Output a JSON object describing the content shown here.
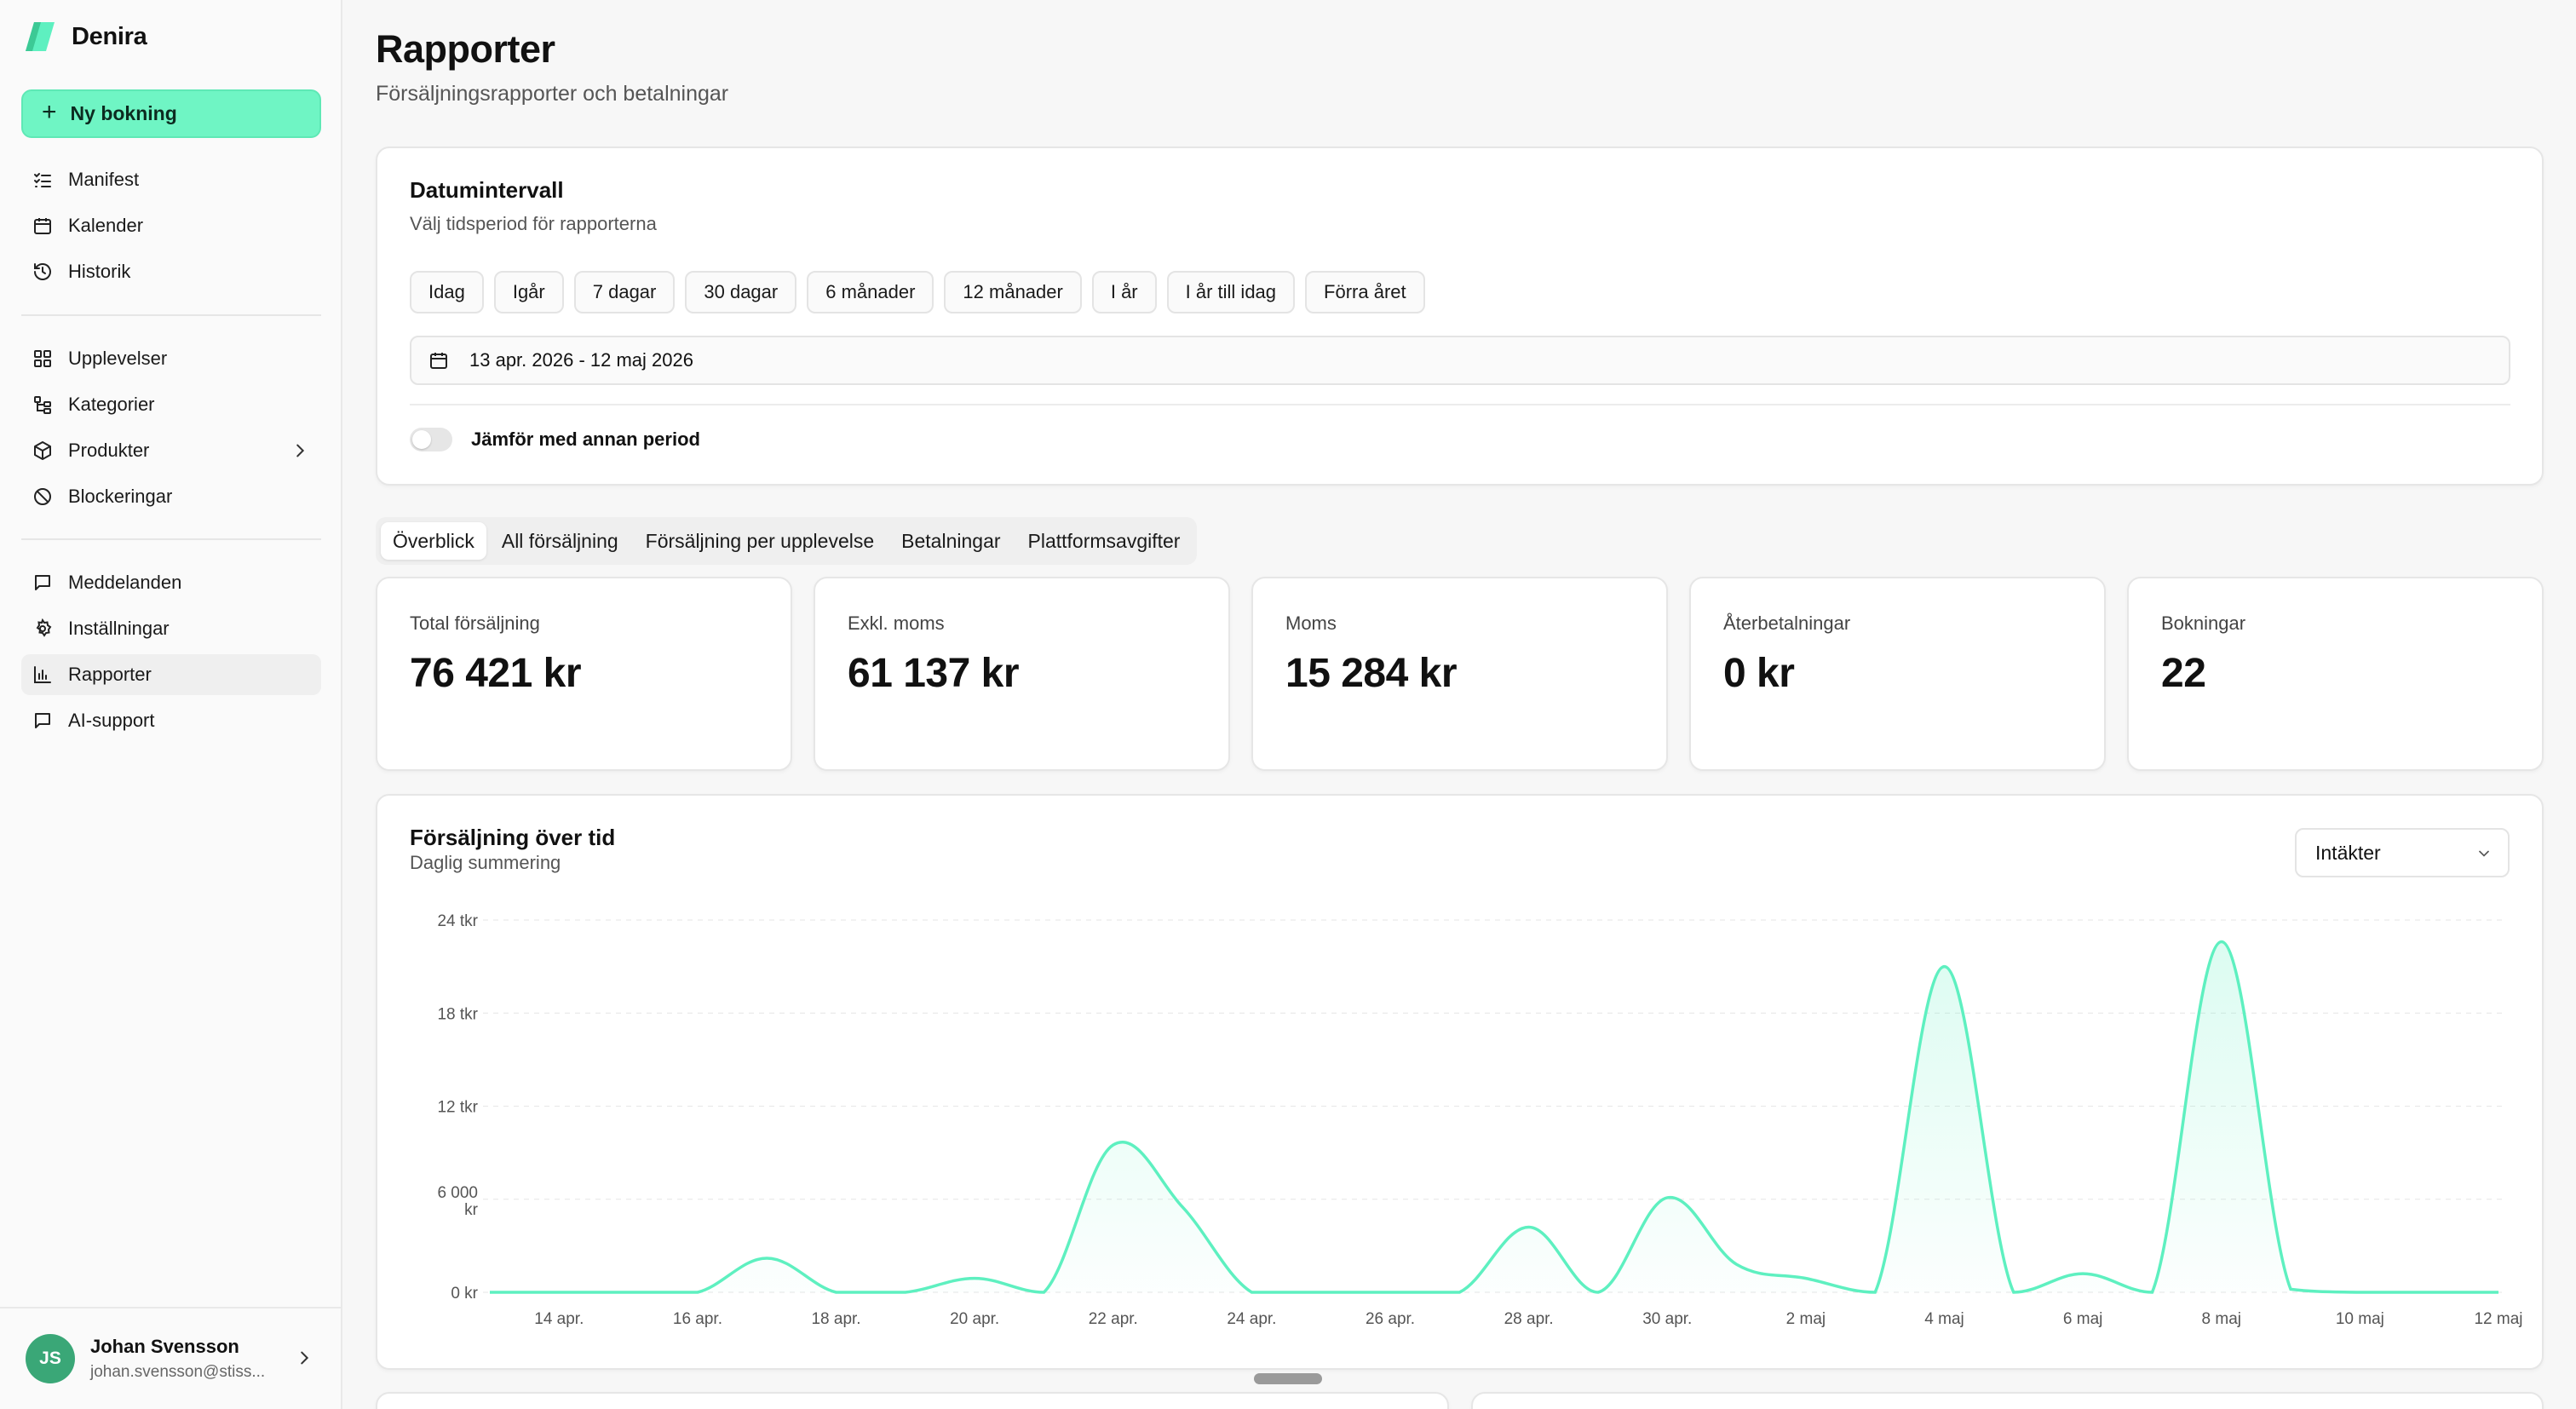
{
  "brand": {
    "name": "Denira",
    "accent": "#6ff5c4"
  },
  "new_booking_label": "Ny bokning",
  "nav": {
    "group1": [
      {
        "label": "Manifest",
        "icon": "list-check-icon"
      },
      {
        "label": "Kalender",
        "icon": "calendar-icon"
      },
      {
        "label": "Historik",
        "icon": "history-icon"
      }
    ],
    "group2": [
      {
        "label": "Upplevelser",
        "icon": "grid-icon"
      },
      {
        "label": "Kategorier",
        "icon": "tree-icon"
      },
      {
        "label": "Produkter",
        "icon": "box-icon"
      },
      {
        "label": "Blockeringar",
        "icon": "ban-icon"
      }
    ],
    "group3": [
      {
        "label": "Meddelanden",
        "icon": "message-icon"
      },
      {
        "label": "Inställningar",
        "icon": "gear-icon"
      },
      {
        "label": "Rapporter",
        "icon": "bar-chart-icon"
      },
      {
        "label": "AI-support",
        "icon": "message-icon"
      }
    ]
  },
  "user": {
    "initials": "JS",
    "name": "Johan Svensson",
    "email": "johan.svensson@stiss..."
  },
  "page": {
    "title": "Rapporter",
    "subtitle": "Försäljningsrapporter och betalningar"
  },
  "date_range": {
    "title": "Datumintervall",
    "subtitle": "Välj tidsperiod för rapporterna",
    "presets": [
      "Idag",
      "Igår",
      "7 dagar",
      "30 dagar",
      "6 månader",
      "12 månader",
      "I år",
      "I år till idag",
      "Förra året"
    ],
    "range": "13 apr. 2026 - 12 maj 2026",
    "compare_label": "Jämför med annan period"
  },
  "tabs": [
    "Överblick",
    "All försäljning",
    "Försäljning per upplevelse",
    "Betalningar",
    "Plattformsavgifter"
  ],
  "stats": [
    {
      "label": "Total försäljning",
      "value": "76 421 kr"
    },
    {
      "label": "Exkl. moms",
      "value": "61 137 kr"
    },
    {
      "label": "Moms",
      "value": "15 284 kr"
    },
    {
      "label": "Återbetalningar",
      "value": "0 kr"
    },
    {
      "label": "Bokningar",
      "value": "22"
    }
  ],
  "chart_card": {
    "title": "Försäljning över tid",
    "subtitle": "Daglig summering",
    "metric": "Intäkter"
  },
  "chart_data": {
    "type": "area",
    "title": "Försäljning över tid",
    "subtitle": "Daglig summering",
    "color": "#5ef0c0",
    "x": [
      "13 apr.",
      "14 apr.",
      "15 apr.",
      "16 apr.",
      "17 apr.",
      "18 apr.",
      "19 apr.",
      "20 apr.",
      "21 apr.",
      "22 apr.",
      "23 apr.",
      "24 apr.",
      "25 apr.",
      "26 apr.",
      "27 apr.",
      "28 apr.",
      "29 apr.",
      "30 apr.",
      "1 maj",
      "2 maj",
      "3 maj",
      "4 maj",
      "5 maj",
      "6 maj",
      "7 maj",
      "8 maj",
      "9 maj",
      "10 maj",
      "11 maj",
      "12 maj"
    ],
    "y": [
      0,
      0,
      0,
      0,
      2200,
      0,
      0,
      900,
      0,
      9500,
      5500,
      0,
      0,
      0,
      0,
      4200,
      0,
      6100,
      1800,
      900,
      0,
      21000,
      0,
      1200,
      0,
      22600,
      200,
      0,
      0,
      0
    ],
    "x_ticks": [
      "14 apr.",
      "16 apr.",
      "18 apr.",
      "20 apr.",
      "22 apr.",
      "24 apr.",
      "26 apr.",
      "28 apr.",
      "30 apr.",
      "2 maj",
      "4 maj",
      "6 maj",
      "8 maj",
      "10 maj",
      "12 maj"
    ],
    "y_ticks": [
      "0 kr",
      "6 000 kr",
      "12 tkr",
      "18 tkr",
      "24 tkr"
    ],
    "ylim": [
      0,
      24000
    ],
    "grid": true
  }
}
